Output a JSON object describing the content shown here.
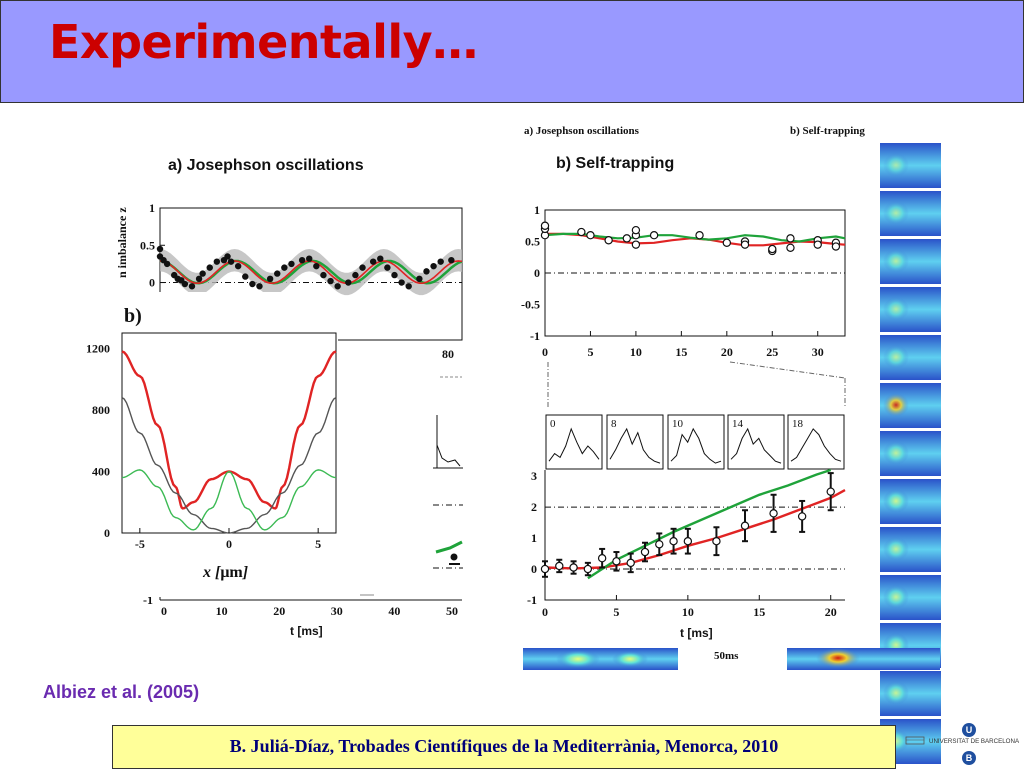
{
  "slide": {
    "title": "Experimentally…"
  },
  "citation": "Albiez et al. (2005)",
  "footer": "B. Juliá-Díaz, Trobades Científiques de la Mediterrània, Menorca, 2010",
  "logo": {
    "university_text": "UNIVERSITAT DE BARCELONA",
    "emblem_letters": [
      "U",
      "B"
    ]
  },
  "colors": {
    "title": "#cc0000",
    "title_bg": "#9999ff",
    "footer_bg": "#ffff99",
    "footer_text": "#00007a",
    "citation": "#6a2bb0",
    "red_curve": "#e02424",
    "green_curve": "#1fa33a"
  },
  "figure_labels": {
    "left_small_header": "a)  Josephson oscillations",
    "right_small_header": "b)  Self-trapping",
    "time_label": "50ms",
    "panel_a_partial_tick": "80"
  },
  "chart_data": [
    {
      "id": "josephson",
      "type": "scatter",
      "title": "a) Josephson oscillations",
      "ylabel": "n imbalance z",
      "xlim": [
        0,
        85
      ],
      "ylim": [
        -0.1,
        1
      ],
      "yticks": [
        "1",
        "0.5",
        "0"
      ],
      "points": [
        [
          0,
          0.45
        ],
        [
          0,
          0.35
        ],
        [
          1,
          0.3
        ],
        [
          2,
          0.25
        ],
        [
          4,
          0.1
        ],
        [
          5,
          0.05
        ],
        [
          6,
          0.03
        ],
        [
          7,
          -0.02
        ],
        [
          9,
          -0.05
        ],
        [
          11,
          0.05
        ],
        [
          12,
          0.12
        ],
        [
          14,
          0.2
        ],
        [
          16,
          0.28
        ],
        [
          18,
          0.3
        ],
        [
          19,
          0.35
        ],
        [
          20,
          0.28
        ],
        [
          22,
          0.22
        ],
        [
          24,
          0.08
        ],
        [
          26,
          -0.02
        ],
        [
          28,
          -0.05
        ],
        [
          31,
          0.05
        ],
        [
          33,
          0.12
        ],
        [
          35,
          0.2
        ],
        [
          37,
          0.25
        ],
        [
          40,
          0.3
        ],
        [
          42,
          0.32
        ],
        [
          44,
          0.22
        ],
        [
          46,
          0.1
        ],
        [
          48,
          0.02
        ],
        [
          50,
          -0.05
        ],
        [
          53,
          0.0
        ],
        [
          55,
          0.1
        ],
        [
          57,
          0.2
        ],
        [
          60,
          0.28
        ],
        [
          62,
          0.32
        ],
        [
          64,
          0.2
        ],
        [
          66,
          0.1
        ],
        [
          68,
          0.0
        ],
        [
          70,
          -0.05
        ],
        [
          73,
          0.05
        ],
        [
          75,
          0.15
        ],
        [
          77,
          0.22
        ],
        [
          79,
          0.28
        ],
        [
          82,
          0.3
        ]
      ],
      "band_halfwidth": 0.15
    },
    {
      "id": "potential",
      "type": "line",
      "panel_label": "b)",
      "xlabel": "x [μm]",
      "xlim": [
        -6,
        6
      ],
      "ylim": [
        0,
        1300
      ],
      "xticks": [
        "-5",
        "0",
        "5"
      ],
      "yticks": [
        "1200",
        "800",
        "400",
        "0"
      ],
      "series": [
        {
          "color": "#e02424",
          "x": [
            -6,
            -5,
            -4,
            -3,
            -2.6,
            -2,
            -1,
            0,
            1,
            2,
            2.6,
            3,
            4,
            5,
            6
          ],
          "y": [
            1180,
            1020,
            700,
            300,
            160,
            200,
            350,
            400,
            350,
            200,
            160,
            300,
            700,
            1020,
            1180
          ]
        },
        {
          "color": "#555555",
          "x": [
            -6,
            -5,
            -4,
            -3,
            -2,
            -1,
            0,
            1,
            2,
            3,
            4,
            5,
            6
          ],
          "y": [
            880,
            650,
            440,
            260,
            120,
            30,
            0,
            30,
            120,
            260,
            440,
            650,
            880
          ]
        },
        {
          "color": "#3cba54",
          "x": [
            -6,
            -5,
            -4,
            -3,
            -2,
            -1,
            0,
            1,
            2,
            3,
            4,
            5,
            6
          ],
          "y": [
            360,
            410,
            300,
            100,
            20,
            160,
            400,
            160,
            20,
            100,
            300,
            410,
            360
          ]
        }
      ]
    },
    {
      "id": "selftrap-top",
      "type": "scatter",
      "title": "b) Self-trapping",
      "xlim": [
        0,
        33
      ],
      "ylim": [
        -1,
        1
      ],
      "yticks": [
        "1",
        "0.5",
        "0",
        "-0.5",
        "-1"
      ],
      "xticks": [
        "0",
        "5",
        "10",
        "15",
        "20",
        "25",
        "30"
      ],
      "points": [
        [
          0,
          0.6
        ],
        [
          0,
          0.7
        ],
        [
          0,
          0.75
        ],
        [
          4,
          0.65
        ],
        [
          5,
          0.6
        ],
        [
          7,
          0.52
        ],
        [
          9,
          0.55
        ],
        [
          10,
          0.6
        ],
        [
          10,
          0.68
        ],
        [
          10,
          0.45
        ],
        [
          12,
          0.6
        ],
        [
          17,
          0.6
        ],
        [
          20,
          0.48
        ],
        [
          22,
          0.5
        ],
        [
          22,
          0.45
        ],
        [
          25,
          0.35
        ],
        [
          25,
          0.38
        ],
        [
          27,
          0.55
        ],
        [
          27,
          0.4
        ],
        [
          30,
          0.52
        ],
        [
          30,
          0.45
        ],
        [
          32,
          0.48
        ],
        [
          32,
          0.42
        ]
      ],
      "series": [
        {
          "color": "#e02424",
          "x": [
            0,
            2,
            4,
            6,
            8,
            10,
            12,
            14,
            16,
            18,
            20,
            22,
            24,
            26,
            28,
            30,
            32,
            33
          ],
          "y": [
            0.62,
            0.62,
            0.6,
            0.55,
            0.5,
            0.47,
            0.48,
            0.52,
            0.55,
            0.53,
            0.48,
            0.44,
            0.44,
            0.47,
            0.5,
            0.49,
            0.46,
            0.45
          ]
        },
        {
          "color": "#1fa33a",
          "x": [
            0,
            2,
            4,
            6,
            8,
            10,
            12,
            14,
            16,
            18,
            20,
            22,
            24,
            26,
            28,
            30,
            32,
            33
          ],
          "y": [
            0.6,
            0.62,
            0.62,
            0.58,
            0.55,
            0.56,
            0.6,
            0.6,
            0.56,
            0.53,
            0.55,
            0.6,
            0.58,
            0.52,
            0.5,
            0.55,
            0.58,
            0.55
          ]
        }
      ]
    },
    {
      "id": "profiles",
      "type": "line",
      "panel_labels": [
        "0",
        "8",
        "10",
        "14",
        "18"
      ]
    },
    {
      "id": "growth",
      "type": "scatter",
      "xlabel": "t [ms]",
      "xlim": [
        0,
        21
      ],
      "ylim": [
        -1,
        3.2
      ],
      "yticks": [
        "3",
        "2",
        "1",
        "0",
        "-1"
      ],
      "xticks": [
        "0",
        "5",
        "10",
        "15",
        "20"
      ],
      "points": [
        [
          0,
          0.0,
          0.25
        ],
        [
          1,
          0.1,
          0.2
        ],
        [
          2,
          0.05,
          0.2
        ],
        [
          3,
          0.0,
          0.2
        ],
        [
          4,
          0.35,
          0.3
        ],
        [
          5,
          0.25,
          0.3
        ],
        [
          6,
          0.2,
          0.3
        ],
        [
          7,
          0.55,
          0.3
        ],
        [
          8,
          0.8,
          0.35
        ],
        [
          9,
          0.9,
          0.4
        ],
        [
          10,
          0.9,
          0.4
        ],
        [
          12,
          0.9,
          0.45
        ],
        [
          14,
          1.4,
          0.5
        ],
        [
          16,
          1.8,
          0.6
        ],
        [
          18,
          1.7,
          0.5
        ],
        [
          20,
          2.5,
          0.6
        ]
      ],
      "series": [
        {
          "color": "#e02424",
          "x": [
            0,
            2,
            4,
            6,
            8,
            10,
            12,
            14,
            16,
            18,
            20,
            21
          ],
          "y": [
            0.05,
            0.02,
            0.05,
            0.2,
            0.45,
            0.75,
            1.0,
            1.3,
            1.6,
            1.95,
            2.3,
            2.55
          ]
        },
        {
          "color": "#1fa33a",
          "x": [
            3,
            5,
            7,
            9,
            11,
            13,
            15,
            17,
            19,
            20
          ],
          "y": [
            -0.3,
            0.3,
            0.75,
            1.2,
            1.6,
            2.0,
            2.4,
            2.7,
            3.05,
            3.2
          ]
        }
      ]
    },
    {
      "id": "bottom-left-axis",
      "type": "scatter",
      "xlabel": "t [ms]",
      "xticks": [
        "0",
        "10",
        "20",
        "30",
        "40",
        "50"
      ],
      "yticks": [
        "-1"
      ]
    }
  ]
}
